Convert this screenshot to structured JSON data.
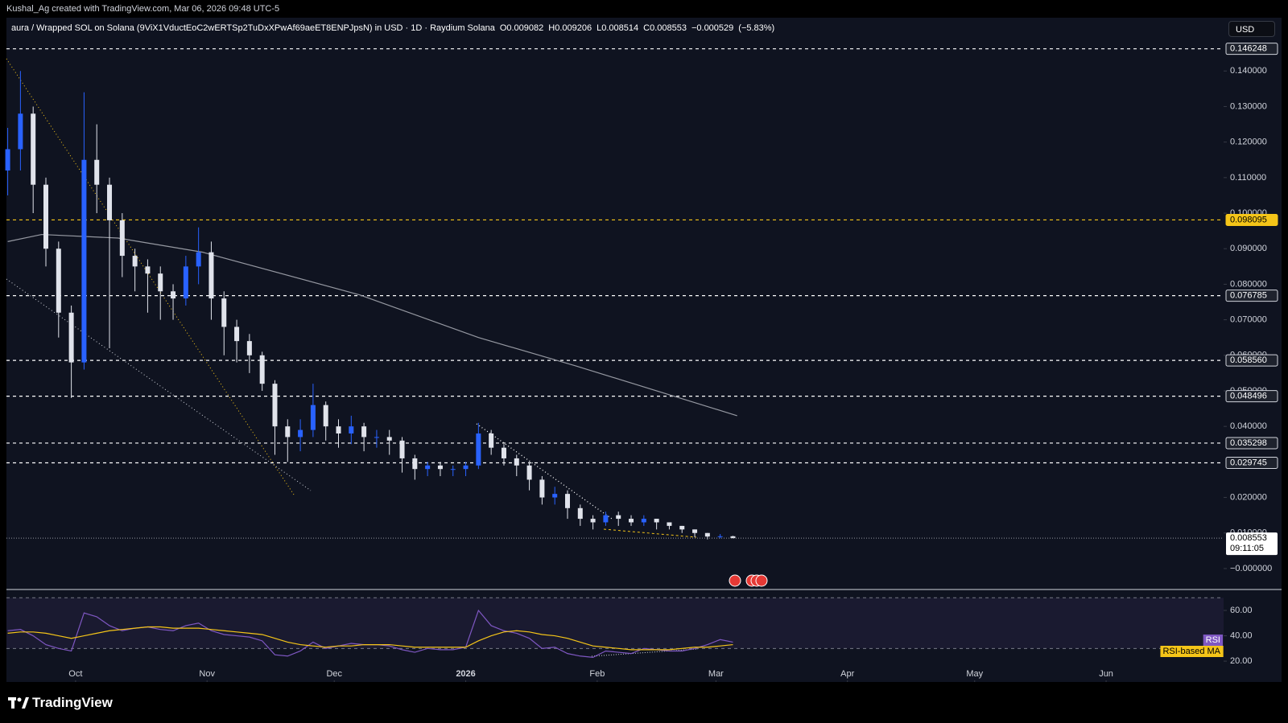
{
  "header": {
    "credit": "Kushal_Ag created with TradingView.com, Mar 06, 2026 09:48 UTC-5",
    "symbol": "aura / Wrapped SOL on Solana (9ViX1VductEoC2wERTSp2TuDxXPwAf69aeET8ENPJpsN) in USD · 1D · Raydium Solana",
    "ohlc_prefixes": [
      "O",
      "H",
      "L",
      "C"
    ],
    "ohlc": [
      0.009082,
      0.009206,
      0.008514,
      0.008553
    ],
    "change": {
      "value": -0.000529,
      "label": "−0.000529"
    },
    "change_pct": {
      "value": -5.83,
      "label": "(−5.83%)"
    },
    "currency": "USD"
  },
  "footer": {
    "brand": "TradingView"
  },
  "chart_data": {
    "type": "candlestick",
    "up_color": "#2962ff",
    "down_color": "#e0e3eb",
    "xlim": [
      -16.3,
      270.7
    ],
    "xticks": [
      {
        "value": 0,
        "label": "Oct"
      },
      {
        "value": 31,
        "label": "Nov"
      },
      {
        "value": 61,
        "label": "Dec"
      },
      {
        "value": 92,
        "label": "2026"
      },
      {
        "value": 123,
        "label": "Feb"
      },
      {
        "value": 151,
        "label": "Mar"
      },
      {
        "value": 182,
        "label": "Apr"
      },
      {
        "value": 212,
        "label": "May"
      },
      {
        "value": 243,
        "label": "Jun"
      }
    ],
    "ylim": [
      -0.0059,
      0.155
    ],
    "yticks": [
      {
        "value": 0.14,
        "label": "0.140000"
      },
      {
        "value": 0.13,
        "label": "0.130000"
      },
      {
        "value": 0.12,
        "label": "0.120000"
      },
      {
        "value": 0.11,
        "label": "0.110000"
      },
      {
        "value": 0.1,
        "label": "0.100000"
      },
      {
        "value": 0.09,
        "label": "0.090000"
      },
      {
        "value": 0.08,
        "label": "0.080000"
      },
      {
        "value": 0.07,
        "label": "0.070000"
      },
      {
        "value": 0.06,
        "label": "0.060000"
      },
      {
        "value": 0.05,
        "label": "0.050000"
      },
      {
        "value": 0.04,
        "label": "0.040000"
      },
      {
        "value": 0.02,
        "label": "0.020000"
      },
      {
        "value": 0.01,
        "label": "0.010000"
      },
      {
        "value": 0,
        "label": "−0.000000"
      }
    ],
    "x": [
      -16,
      -13,
      -10,
      -7,
      -4,
      -1,
      2,
      5,
      8,
      11,
      14,
      17,
      20,
      23,
      26,
      29,
      32,
      35,
      38,
      41,
      44,
      47,
      50,
      53,
      56,
      59,
      62,
      65,
      68,
      71,
      74,
      77,
      80,
      83,
      86,
      89,
      92,
      95,
      98,
      101,
      104,
      107,
      110,
      113,
      116,
      119,
      122,
      125,
      128,
      131,
      134,
      137,
      140,
      143,
      146,
      149,
      152,
      155
    ],
    "open": [
      0.112,
      0.118,
      0.128,
      0.108,
      0.09,
      0.072,
      0.058,
      0.115,
      0.108,
      0.098,
      0.088,
      0.085,
      0.083,
      0.078,
      0.076,
      0.085,
      0.089,
      0.076,
      0.068,
      0.064,
      0.06,
      0.052,
      0.04,
      0.037,
      0.039,
      0.046,
      0.04,
      0.038,
      0.04,
      0.037,
      0.037,
      0.036,
      0.031,
      0.028,
      0.029,
      0.028,
      0.028,
      0.029,
      0.038,
      0.034,
      0.031,
      0.029,
      0.025,
      0.02,
      0.021,
      0.017,
      0.014,
      0.013,
      0.015,
      0.014,
      0.013,
      0.014,
      0.013,
      0.012,
      0.011,
      0.01,
      0.009,
      0.009082
    ],
    "high": [
      0.124,
      0.14,
      0.13,
      0.11,
      0.092,
      0.074,
      0.134,
      0.125,
      0.11,
      0.1,
      0.09,
      0.087,
      0.085,
      0.08,
      0.088,
      0.096,
      0.092,
      0.078,
      0.07,
      0.066,
      0.061,
      0.053,
      0.042,
      0.042,
      0.052,
      0.047,
      0.042,
      0.043,
      0.041,
      0.039,
      0.039,
      0.037,
      0.032,
      0.03,
      0.03,
      0.029,
      0.03,
      0.041,
      0.039,
      0.035,
      0.032,
      0.03,
      0.026,
      0.023,
      0.022,
      0.018,
      0.015,
      0.016,
      0.016,
      0.015,
      0.015,
      0.014,
      0.013,
      0.012,
      0.011,
      0.01,
      0.0097,
      0.009206
    ],
    "low": [
      0.105,
      0.112,
      0.1,
      0.085,
      0.065,
      0.048,
      0.056,
      0.1,
      0.062,
      0.082,
      0.078,
      0.072,
      0.07,
      0.07,
      0.074,
      0.08,
      0.07,
      0.06,
      0.058,
      0.055,
      0.05,
      0.032,
      0.03,
      0.033,
      0.037,
      0.036,
      0.034,
      0.035,
      0.033,
      0.034,
      0.032,
      0.027,
      0.025,
      0.026,
      0.026,
      0.026,
      0.026,
      0.028,
      0.032,
      0.029,
      0.026,
      0.022,
      0.018,
      0.018,
      0.014,
      0.012,
      0.011,
      0.012,
      0.012,
      0.012,
      0.012,
      0.011,
      0.011,
      0.01,
      0.0088,
      0.0082,
      0.0085,
      0.008514
    ],
    "close": [
      0.118,
      0.128,
      0.108,
      0.09,
      0.072,
      0.058,
      0.115,
      0.108,
      0.098,
      0.088,
      0.085,
      0.083,
      0.078,
      0.076,
      0.085,
      0.089,
      0.076,
      0.068,
      0.064,
      0.06,
      0.052,
      0.04,
      0.037,
      0.039,
      0.046,
      0.04,
      0.038,
      0.04,
      0.037,
      0.037,
      0.036,
      0.031,
      0.028,
      0.029,
      0.028,
      0.028,
      0.029,
      0.038,
      0.034,
      0.031,
      0.029,
      0.025,
      0.02,
      0.021,
      0.017,
      0.014,
      0.013,
      0.015,
      0.014,
      0.013,
      0.014,
      0.013,
      0.012,
      0.011,
      0.01,
      0.009,
      0.009082,
      0.008553
    ],
    "ma": {
      "color": "#9598a1",
      "x": [
        -16,
        -8,
        10,
        30,
        67,
        95,
        118,
        156
      ],
      "values": [
        0.092,
        0.094,
        0.093,
        0.089,
        0.077,
        0.065,
        0.057,
        0.043
      ]
    },
    "levels": [
      {
        "value": 0.146248,
        "color": "#ffffff"
      },
      {
        "value": 0.098095,
        "color": "#f5c518"
      },
      {
        "value": 0.076785,
        "color": "#ffffff"
      },
      {
        "value": 0.05856,
        "label": "0.058560",
        "color": "#ffffff"
      },
      {
        "value": 0.048496,
        "color": "#ffffff"
      },
      {
        "value": 0.035298,
        "color": "#ffffff"
      },
      {
        "value": 0.029745,
        "color": "#ffffff"
      }
    ],
    "last_price": {
      "value": 0.008553,
      "countdown": "09:11:05"
    },
    "rsi": {
      "ylim": [
        4.2,
        76.5
      ],
      "yticks": [
        {
          "value": 60,
          "label": "60.00"
        },
        {
          "value": 40,
          "label": "40.00"
        },
        {
          "value": 20,
          "label": "20.00"
        }
      ],
      "bands": [
        70,
        30
      ],
      "series": [
        {
          "name": "RSI",
          "color": "#7e57c2",
          "values": [
            44,
            45,
            40,
            33,
            30,
            28,
            58,
            55,
            48,
            44,
            46,
            47,
            45,
            44,
            48,
            50,
            44,
            41,
            40,
            39,
            36,
            25,
            24,
            28,
            35,
            30,
            32,
            34,
            33,
            33,
            32,
            29,
            27,
            30,
            29,
            29,
            31,
            60,
            48,
            44,
            42,
            38,
            30,
            31,
            26,
            24,
            23,
            28,
            27,
            26,
            30,
            29,
            28,
            28,
            30,
            33,
            37,
            35
          ]
        },
        {
          "name": "RSI-based MA",
          "color": "#f5c518",
          "values": [
            42,
            43,
            43,
            42,
            40,
            38,
            40,
            42,
            44,
            45,
            46,
            47,
            47,
            46,
            46,
            46,
            45,
            44,
            43,
            42,
            41,
            38,
            35,
            33,
            32,
            31,
            32,
            32,
            33,
            33,
            33,
            32,
            31,
            31,
            31,
            31,
            31,
            36,
            40,
            43,
            44,
            43,
            41,
            40,
            38,
            35,
            32,
            31,
            30,
            29,
            29,
            29,
            29,
            30,
            31,
            31,
            32,
            33
          ]
        }
      ]
    }
  }
}
